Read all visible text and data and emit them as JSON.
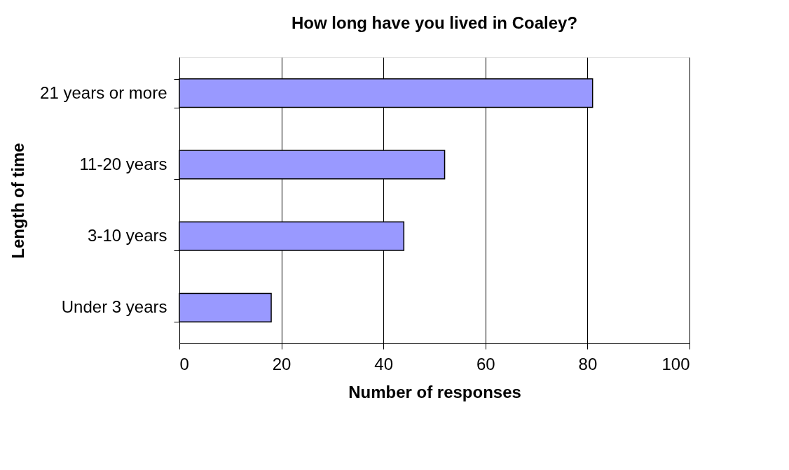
{
  "chart_data": {
    "type": "bar",
    "orientation": "horizontal",
    "title": "How long have you lived in Coaley?",
    "xlabel": "Number of responses",
    "ylabel": "Length of time",
    "categories": [
      "21 years or more",
      "11-20 years",
      "3-10 years",
      "Under 3 years"
    ],
    "values": [
      81,
      52,
      44,
      18
    ],
    "color": "#9999ff",
    "xlim": [
      0,
      100
    ],
    "xticks": [
      0,
      20,
      40,
      60,
      80,
      100
    ],
    "grid": "x"
  }
}
